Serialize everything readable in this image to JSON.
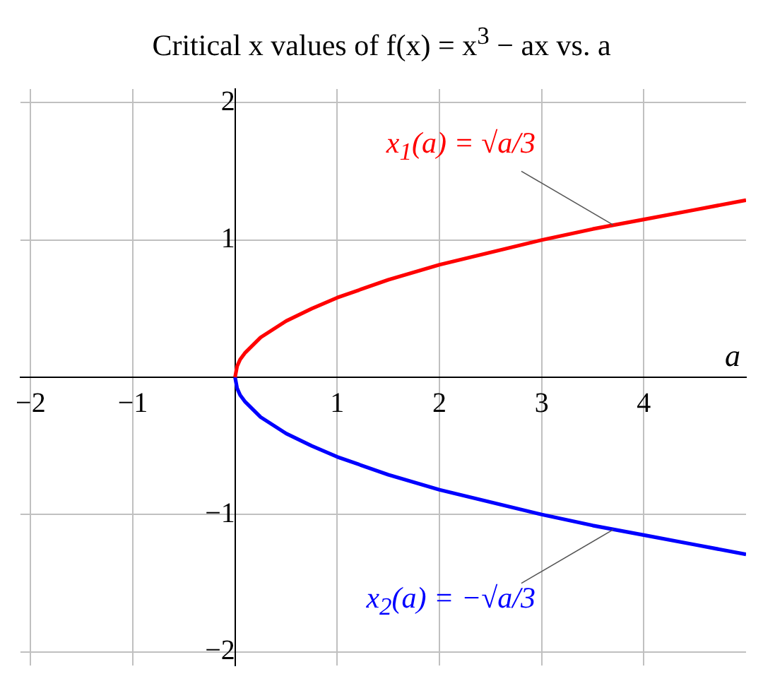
{
  "chart_data": {
    "type": "line",
    "title": "Critical x values of f(x) = x$^{3}$ − ax vs. a",
    "xlabel": "a",
    "xlim": [
      -2.1,
      5
    ],
    "ylim": [
      -2.1,
      2.1
    ],
    "xticks": [
      -2,
      -1,
      1,
      2,
      3,
      4
    ],
    "yticks": [
      -2,
      -1,
      1,
      2
    ],
    "grid": true,
    "legend": false,
    "marker": "none",
    "line_style": "solid",
    "series": [
      {
        "color": "#ff0000",
        "x": [
          0,
          0.02,
          0.05,
          0.1,
          0.25,
          0.5,
          0.75,
          1,
          1.5,
          2,
          2.5,
          3,
          3.5,
          4,
          4.5,
          5
        ],
        "values": [
          0,
          0.08,
          0.13,
          0.18,
          0.29,
          0.41,
          0.5,
          0.58,
          0.71,
          0.82,
          0.91,
          1,
          1.08,
          1.15,
          1.22,
          1.29
        ]
      },
      {
        "color": "#0000ff",
        "x": [
          0,
          0.02,
          0.05,
          0.1,
          0.25,
          0.5,
          0.75,
          1,
          1.5,
          2,
          2.5,
          3,
          3.5,
          4,
          4.5,
          5
        ],
        "values": [
          0,
          -0.08,
          -0.13,
          -0.18,
          -0.29,
          -0.41,
          -0.5,
          -0.58,
          -0.71,
          -0.82,
          -0.91,
          -1,
          -1.08,
          -1.15,
          -1.22,
          -1.29
        ]
      }
    ],
    "annotations": [
      {
        "text": "x$_{1}$(a) = √a/3",
        "x": 3.7,
        "y": 1.11
      },
      {
        "text": "x$_{2}$(a) = −√a/3",
        "x": 3.7,
        "y": -1.11
      }
    ]
  }
}
